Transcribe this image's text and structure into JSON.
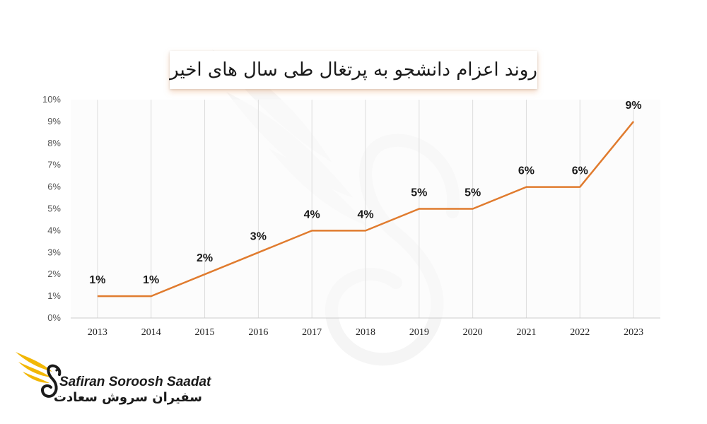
{
  "header": {
    "title": "روند اعزام دانشجو به پرتغال طی سال های اخیر"
  },
  "brand": {
    "name_en": "Safiran Soroosh Saadat",
    "name_fa": "سفیران سروش سعادت",
    "logo_icon": "winged-swan-logo-icon",
    "watermark_icon": "swan-watermark-icon"
  },
  "colors": {
    "line": "#E07B2E",
    "grid": "#DDDDDD",
    "plot_bg": "#FAFAFA",
    "logo_gold": "#F2B705"
  },
  "chart_data": {
    "type": "line",
    "title": "روند اعزام دانشجو به پرتغال طی سال های اخیر",
    "xlabel": "",
    "ylabel": "",
    "categories": [
      "2013",
      "2014",
      "2015",
      "2016",
      "2017",
      "2018",
      "2019",
      "2020",
      "2021",
      "2022",
      "2023"
    ],
    "series": [
      {
        "values": [
          1,
          1,
          2,
          3,
          4,
          4,
          5,
          5,
          6,
          6,
          9
        ]
      }
    ],
    "data_labels": [
      "1%",
      "1%",
      "2%",
      "3%",
      "4%",
      "4%",
      "5%",
      "5%",
      "6%",
      "6%",
      "9%"
    ],
    "y_tick_labels": [
      "0%",
      "1%",
      "2%",
      "3%",
      "4%",
      "5%",
      "6%",
      "7%",
      "8%",
      "9%",
      "10%"
    ],
    "ylim": [
      0,
      10
    ],
    "y_unit": "%",
    "grid": "vertical",
    "legend": "none"
  }
}
